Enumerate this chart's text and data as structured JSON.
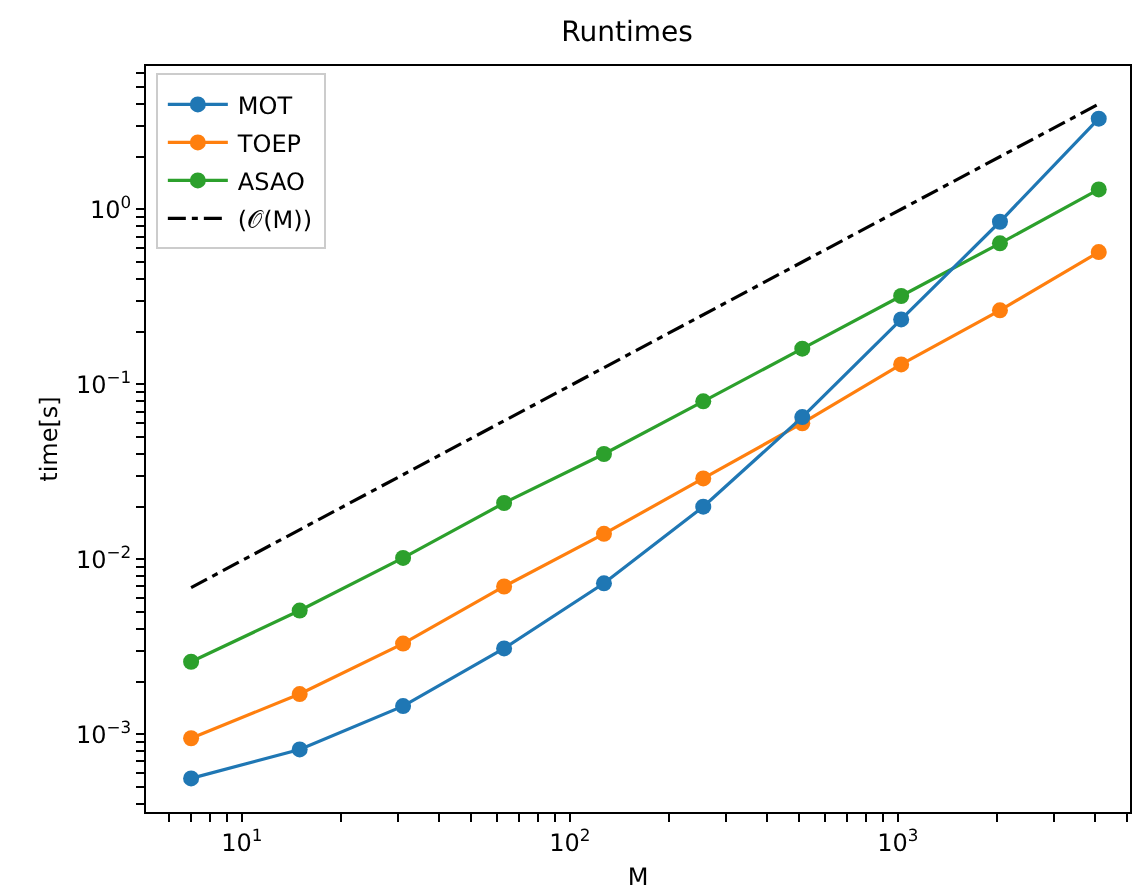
{
  "chart_data": {
    "type": "line",
    "title": "Runtimes",
    "xlabel": "M",
    "ylabel": "time[s]",
    "log": "xy",
    "grid": false,
    "legend": "top left",
    "marker": "circle",
    "x": [
      7,
      15,
      31,
      63,
      127,
      255,
      511,
      1023,
      2047,
      4095
    ],
    "xlim": [
      5.1,
      5100
    ],
    "ylim": [
      0.00036,
      6.6
    ],
    "xticks": [
      {
        "value": 6,
        "label": null
      },
      {
        "value": 7,
        "label": null
      },
      {
        "value": 8,
        "label": null
      },
      {
        "value": 9,
        "label": null
      },
      {
        "value": 10,
        "label": "10$^{1}$"
      },
      {
        "value": 20,
        "label": null
      },
      {
        "value": 30,
        "label": null
      },
      {
        "value": 40,
        "label": null
      },
      {
        "value": 50,
        "label": null
      },
      {
        "value": 60,
        "label": null
      },
      {
        "value": 70,
        "label": null
      },
      {
        "value": 80,
        "label": null
      },
      {
        "value": 90,
        "label": null
      },
      {
        "value": 100,
        "label": "10$^{2}$"
      },
      {
        "value": 200,
        "label": null
      },
      {
        "value": 300,
        "label": null
      },
      {
        "value": 400,
        "label": null
      },
      {
        "value": 500,
        "label": null
      },
      {
        "value": 600,
        "label": null
      },
      {
        "value": 700,
        "label": null
      },
      {
        "value": 800,
        "label": null
      },
      {
        "value": 900,
        "label": null
      },
      {
        "value": 1000,
        "label": "10$^{3}$"
      },
      {
        "value": 2000,
        "label": null
      },
      {
        "value": 3000,
        "label": null
      },
      {
        "value": 4000,
        "label": null
      },
      {
        "value": 5000,
        "label": null
      }
    ],
    "yticks": [
      {
        "value": 0.0004,
        "label": null
      },
      {
        "value": 0.0005,
        "label": null
      },
      {
        "value": 0.0006,
        "label": null
      },
      {
        "value": 0.0007,
        "label": null
      },
      {
        "value": 0.0008,
        "label": null
      },
      {
        "value": 0.0009,
        "label": null
      },
      {
        "value": 0.001,
        "label": "10$^{−3}$"
      },
      {
        "value": 0.002,
        "label": null
      },
      {
        "value": 0.003,
        "label": null
      },
      {
        "value": 0.004,
        "label": null
      },
      {
        "value": 0.005,
        "label": null
      },
      {
        "value": 0.006,
        "label": null
      },
      {
        "value": 0.007,
        "label": null
      },
      {
        "value": 0.008,
        "label": null
      },
      {
        "value": 0.009,
        "label": null
      },
      {
        "value": 0.01,
        "label": "10$^{−2}$"
      },
      {
        "value": 0.02,
        "label": null
      },
      {
        "value": 0.03,
        "label": null
      },
      {
        "value": 0.04,
        "label": null
      },
      {
        "value": 0.05,
        "label": null
      },
      {
        "value": 0.06,
        "label": null
      },
      {
        "value": 0.07,
        "label": null
      },
      {
        "value": 0.08,
        "label": null
      },
      {
        "value": 0.09,
        "label": null
      },
      {
        "value": 0.1,
        "label": "10$^{−1}$"
      },
      {
        "value": 0.2,
        "label": null
      },
      {
        "value": 0.3,
        "label": null
      },
      {
        "value": 0.4,
        "label": null
      },
      {
        "value": 0.5,
        "label": null
      },
      {
        "value": 0.6,
        "label": null
      },
      {
        "value": 0.7,
        "label": null
      },
      {
        "value": 0.8,
        "label": null
      },
      {
        "value": 0.9,
        "label": null
      },
      {
        "value": 1,
        "label": "10$^{0}$"
      },
      {
        "value": 2,
        "label": null
      },
      {
        "value": 3,
        "label": null
      },
      {
        "value": 4,
        "label": null
      },
      {
        "value": 5,
        "label": null
      },
      {
        "value": 6,
        "label": null
      }
    ],
    "series": [
      {
        "name": "MOT",
        "color": "#1f77b4",
        "values": [
          0.00056,
          0.00082,
          0.00145,
          0.0031,
          0.0073,
          0.02,
          0.065,
          0.235,
          0.85,
          3.3
        ]
      },
      {
        "name": "TOEP",
        "color": "#ff7f0e",
        "values": [
          0.00095,
          0.0017,
          0.0033,
          0.007,
          0.014,
          0.029,
          0.06,
          0.13,
          0.265,
          0.57
        ]
      },
      {
        "name": "ASAO",
        "color": "#2ca02c",
        "values": [
          0.0026,
          0.0051,
          0.0102,
          0.021,
          0.04,
          0.08,
          0.16,
          0.32,
          0.64,
          1.3
        ]
      },
      {
        "name": "(𝒪(M))",
        "color": "#000000",
        "marker": "none",
        "line_style": "dashdot",
        "x": [
          7,
          4095
        ],
        "values": [
          0.0069,
          4.0
        ]
      }
    ]
  }
}
